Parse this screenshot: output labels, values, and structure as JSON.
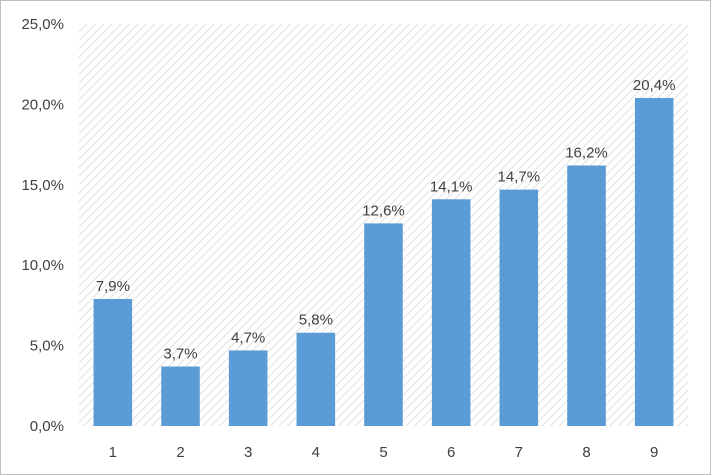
{
  "chart_data": {
    "type": "bar",
    "title": "",
    "xlabel": "",
    "ylabel": "",
    "categories": [
      "1",
      "2",
      "3",
      "4",
      "5",
      "6",
      "7",
      "8",
      "9"
    ],
    "values": [
      7.9,
      3.7,
      4.7,
      5.8,
      12.6,
      14.1,
      14.7,
      16.2,
      20.4
    ],
    "data_labels": [
      "7,9%",
      "3,7%",
      "4,7%",
      "5,8%",
      "12,6%",
      "14,1%",
      "14,7%",
      "16,2%",
      "20,4%"
    ],
    "ylim": [
      0,
      25
    ],
    "yticks": [
      0,
      5,
      10,
      15,
      20,
      25
    ],
    "ytick_labels": [
      "0,0%",
      "5,0%",
      "10,0%",
      "15,0%",
      "20,0%",
      "25,0%"
    ],
    "grid": false,
    "legend": "none",
    "plot_background": "diagonal-hatch",
    "colors": {
      "bar": "#5b9bd5",
      "hatch": "#d9d9d9",
      "border": "#bfbfbf",
      "text": "#404040"
    }
  }
}
